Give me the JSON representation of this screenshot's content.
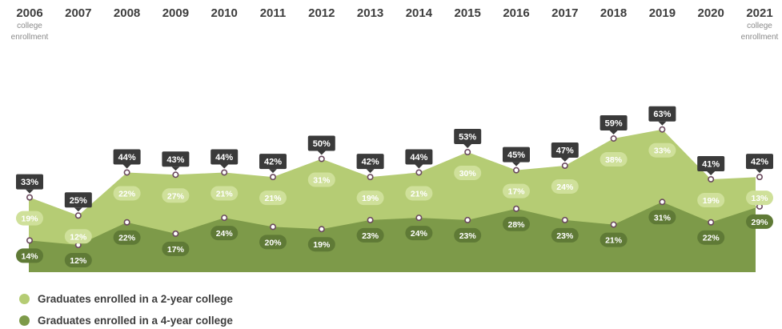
{
  "chart_data": {
    "type": "area",
    "stacked": true,
    "categories": [
      "2006",
      "2007",
      "2008",
      "2009",
      "2010",
      "2011",
      "2012",
      "2013",
      "2014",
      "2015",
      "2016",
      "2017",
      "2018",
      "2019",
      "2020",
      "2021"
    ],
    "series": [
      {
        "name": "Graduates enrolled in a 4-year college",
        "values": [
          14,
          12,
          22,
          17,
          24,
          20,
          19,
          23,
          24,
          23,
          28,
          23,
          21,
          31,
          22,
          29
        ]
      },
      {
        "name": "Graduates enrolled in a 2-year college",
        "values": [
          19,
          12,
          22,
          27,
          21,
          21,
          31,
          19,
          21,
          30,
          17,
          24,
          38,
          33,
          19,
          13
        ]
      }
    ],
    "totals": [
      33,
      25,
      44,
      43,
      44,
      42,
      50,
      42,
      44,
      53,
      45,
      47,
      59,
      63,
      41,
      42
    ],
    "value_suffix": "%",
    "end_label": "college enrollment",
    "colors": {
      "two_year": "#b5cc74",
      "four_year": "#7d9a49",
      "two_year_pill": "#cfe09a",
      "four_year_pill": "#5f7a36",
      "total_label_bg": "#3a3a3a",
      "marker_stroke": "#6b4a5e"
    }
  },
  "legend": [
    {
      "label": "Graduates enrolled in a 2-year college",
      "color": "#b5cc74"
    },
    {
      "label": "Graduates enrolled in a 4-year college",
      "color": "#7d9a49"
    }
  ]
}
